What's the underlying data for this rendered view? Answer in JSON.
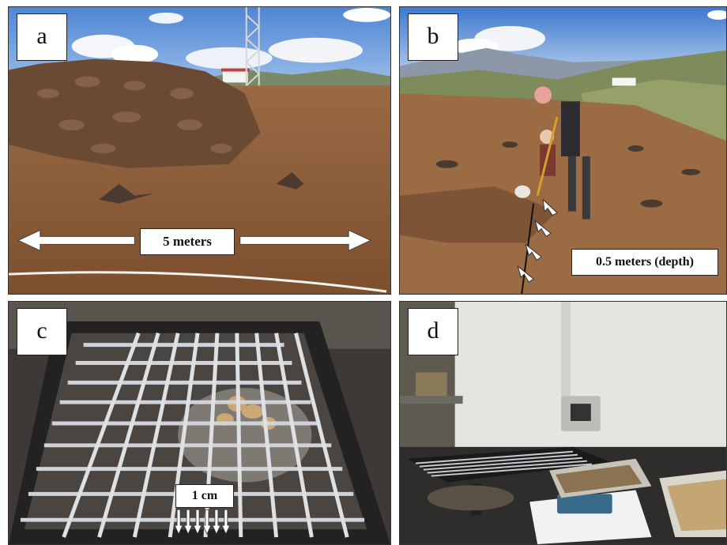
{
  "panels": {
    "a": {
      "letter": "a",
      "label": "5 meters"
    },
    "b": {
      "letter": "b",
      "label": "0.5 meters (depth)"
    },
    "c": {
      "letter": "c",
      "label": "1 cm"
    },
    "d": {
      "letter": "d"
    }
  },
  "colors": {
    "sky": "#5b8fd6",
    "soil": "#8a5a35",
    "sieve": "#c8ccd0",
    "wall": "#e6e6e3"
  }
}
